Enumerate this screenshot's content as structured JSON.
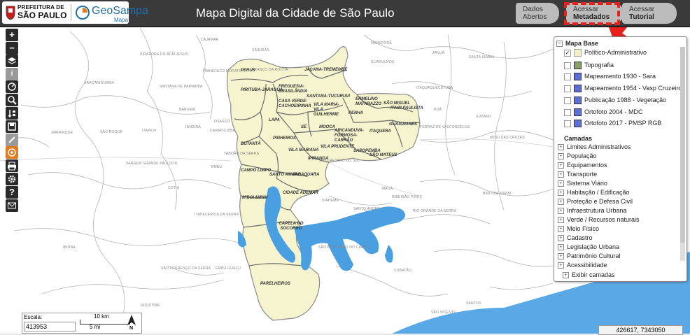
{
  "header": {
    "pref_line1": "PREFEITURA DE",
    "pref_line2": "SÃO PAULO",
    "geosampa_title": "GeoSampa",
    "geosampa_sub": "Mapa",
    "app_title": "Mapa Digital da Cidade de São Paulo",
    "tabs": [
      {
        "line1": "Dados",
        "line2": "Abertos"
      },
      {
        "line1": "Acessar",
        "line2": "Metadados"
      },
      {
        "line1": "Acessar",
        "line2": "Tutorial"
      }
    ]
  },
  "toolbar": {
    "zoom_in": "+",
    "zoom_out": "−",
    "help": "?"
  },
  "panel": {
    "mapa_base_title": "Mapa Base",
    "mapa_base_items": [
      {
        "label": "Político-Administrativo",
        "checked": true,
        "color": "#f3f0c8"
      },
      {
        "label": "Topografia",
        "checked": false,
        "color": "#8aa060"
      },
      {
        "label": "Mapeamento 1930 - Sara",
        "checked": false,
        "color": "#5b6fd6"
      },
      {
        "label": "Mapeamento 1954 - Vasp Cruzeiro",
        "checked": false,
        "color": "#5b6fd6"
      },
      {
        "label": "Publicação 1988 - Vegetação",
        "checked": false,
        "color": "#5b6fd6"
      },
      {
        "label": "Ortofoto 2004 - MDC",
        "checked": false,
        "color": "#5b6fd6"
      },
      {
        "label": "Ortofoto 2017 - PMSP RGB",
        "checked": false,
        "color": "#5b6fd6"
      }
    ],
    "camadas_title": "Camadas",
    "camadas_items": [
      "Limites Administrativos",
      "População",
      "Equipamentos",
      "Transporte",
      "Sistema Viário",
      "Habitação / Edificação",
      "Proteção e Defesa Civil",
      "Infraestrutura Urbana",
      "Verde / Recursos naturais",
      "Meio Físico",
      "Cadastro",
      "Legislação Urbana",
      "Patrimônio Cultural",
      "Acessibilidade"
    ],
    "exibir_camadas": "Exibir camadas"
  },
  "scale": {
    "label": "Escala:",
    "value": "413953",
    "km": "10 km",
    "mi": "5 mi",
    "north": "N"
  },
  "coordinates": "426617, 7343050",
  "map_labels": {
    "districts": [
      "PERUS",
      "JAÇANA-TREMEMBÉ",
      "FREGUESIA-BRASILÂNDIA",
      "PIRITUBA-JARAGUÁ",
      "SANTANA-TUCURUVI",
      "CASA VERDE-CACHOEIRINHA",
      "VILA MARIA-VILA GUILHERME",
      "ERMELINO MATARAZZO",
      "SÃO MIGUEL",
      "ITAIM PAULISTA",
      "PENHA",
      "GUAIANASES",
      "LAPA",
      "SÉ",
      "MOOCA",
      "ITAQUERA",
      "ARICANDUVA-FORMOSA-CARRÃO",
      "VILA PRUDENTE",
      "SAPOPEMBA",
      "SÃO MATEUS",
      "PINHEIROS",
      "BUTANTÃ",
      "VILA MARIANA",
      "IPIRANGA",
      "CAMPO LIMPO",
      "SANTO AMARO",
      "JABAQUARA",
      "CIDADE ADEMAR",
      "M'BOI MIRIM",
      "CAPELA DO SOCORRO",
      "PARELHEIROS"
    ],
    "places": [
      "CAJAMAR",
      "CAIEIRAS",
      "MAIRIPORÃ",
      "GUARULHOS",
      "ARUJÁ",
      "ITAQUAQUECETUBA",
      "POÁ",
      "SUZANO",
      "MOGI DAS CRUZES",
      "FERRAZ DE VASCONCELOS",
      "SANTANA DE PARNAÍBA",
      "BARUERI",
      "OSASCO",
      "CARAPICUÍBA",
      "COTIA",
      "EMBU",
      "TABOÃO DA SERRA",
      "ITAPEVI",
      "JANDIRA",
      "SÃO CAETANO DO SUL",
      "SANTO ANDRÉ",
      "MAUÁ",
      "RIBEIRÃO PIRES",
      "RIO GRANDE DA SERRA",
      "SÃO BERNARDO DO CAMPO",
      "DIADEMA",
      "ITAPECERICA DA SERRA",
      "EMBU-GUAÇU",
      "SÃO LOURENÇO DA SERRA",
      "JUQUITIBA",
      "CUBATÃO",
      "SANTOS",
      "SÃO VICENTE",
      "IBIÚNA",
      "MAIRINQUE",
      "SÃO ROQUE",
      "PIRAPORA DO BOM JESUS",
      "ARAÇARIGUAMA",
      "VARGEM GRANDE PAULISTA",
      "BIRITIBA-MIRIM",
      "SANTA ISABEL",
      "FRANCISCO MORATO",
      "FRANCO DA ROCHA"
    ]
  },
  "colors": {
    "header_bg": "#3a3a3a",
    "city_fill": "#f6f3cf",
    "water": "#4a9fe0",
    "highlight_red": "#e8201c"
  }
}
